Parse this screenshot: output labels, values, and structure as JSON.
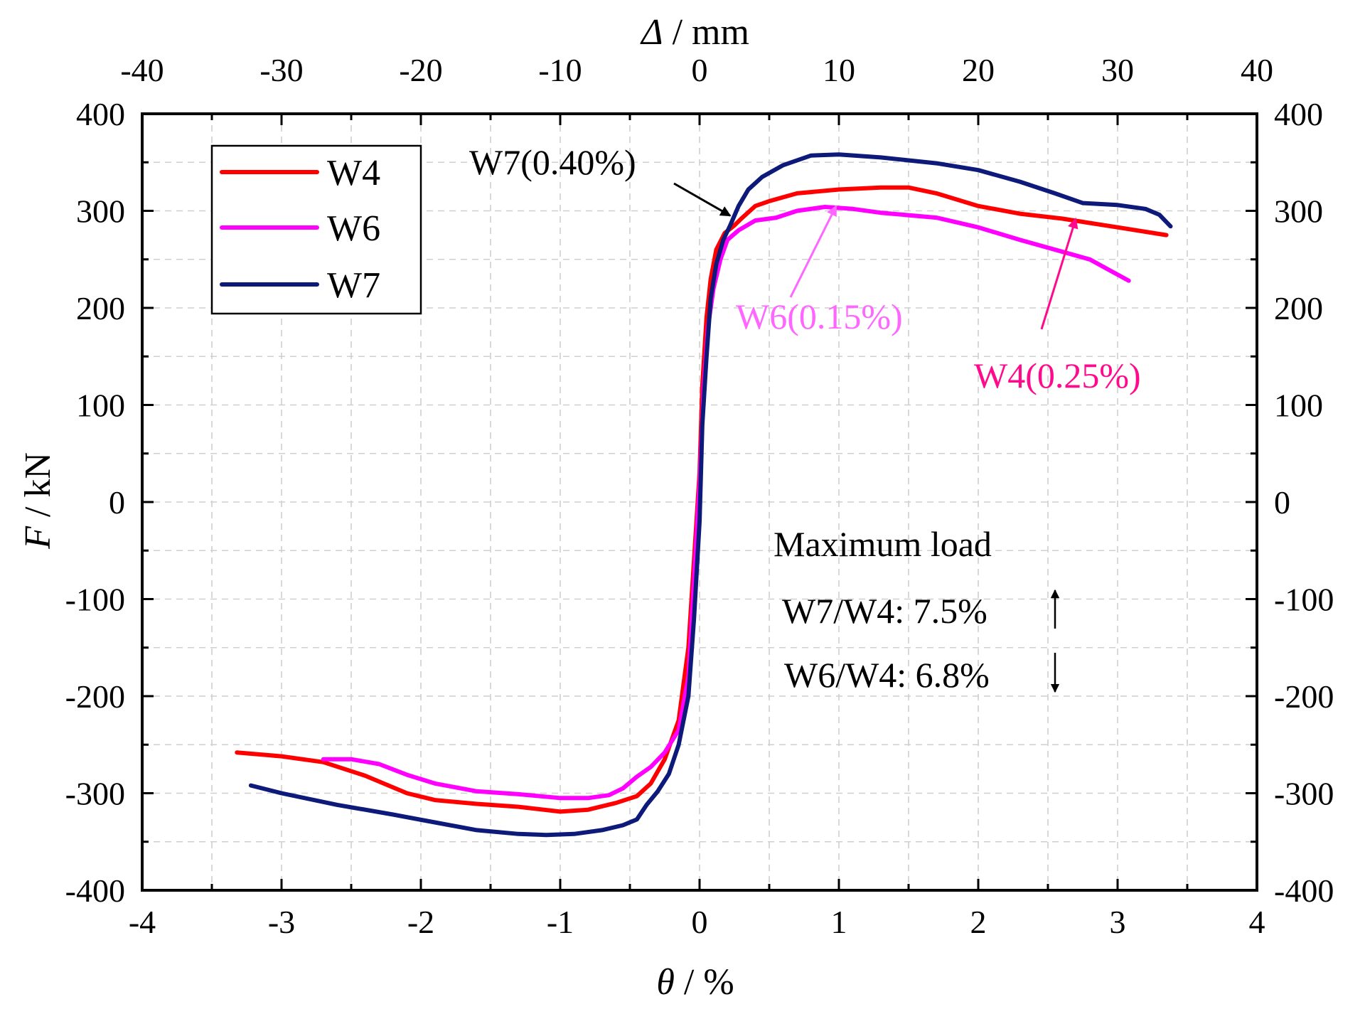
{
  "chart_data": {
    "type": "line",
    "x_label_symbol": "θ",
    "x_label_unit": " / %",
    "x2_label_symbol": "Δ",
    "x2_label_unit": " / mm",
    "y_label_symbol": "F",
    "y_label_unit": " / kN",
    "xlim": [
      -4,
      4
    ],
    "x2lim": [
      -40,
      40
    ],
    "ylim": [
      -400,
      400
    ],
    "x_ticks": [
      "-4",
      "-3",
      "-2",
      "-1",
      "0",
      "1",
      "2",
      "3",
      "4"
    ],
    "x2_ticks": [
      "-40",
      "-30",
      "-20",
      "-10",
      "0",
      "10",
      "20",
      "30",
      "40"
    ],
    "y_ticks": [
      "-400",
      "-300",
      "-200",
      "-100",
      "0",
      "100",
      "200",
      "300",
      "400"
    ],
    "grid": true,
    "legend_position": "top-left",
    "series": [
      {
        "name": "W4",
        "color": "#ff0000",
        "x": [
          -3.32,
          -3.0,
          -2.7,
          -2.4,
          -2.1,
          -1.9,
          -1.6,
          -1.3,
          -1.0,
          -0.8,
          -0.6,
          -0.45,
          -0.35,
          -0.25,
          -0.15,
          -0.08,
          -0.04,
          0.0,
          0.02,
          0.05,
          0.08,
          0.12,
          0.18,
          0.25,
          0.3,
          0.4,
          0.5,
          0.7,
          1.0,
          1.3,
          1.5,
          1.7,
          2.0,
          2.3,
          2.6,
          3.0,
          3.35
        ],
        "y": [
          -258,
          -262,
          -268,
          -282,
          -300,
          -307,
          -311,
          -314,
          -319,
          -317,
          -310,
          -303,
          -290,
          -265,
          -225,
          -150,
          -60,
          30,
          120,
          190,
          230,
          260,
          277,
          285,
          292,
          305,
          310,
          318,
          322,
          324,
          324,
          318,
          305,
          297,
          292,
          283,
          275
        ]
      },
      {
        "name": "W6",
        "color": "#ff00ff",
        "x": [
          -2.7,
          -2.5,
          -2.3,
          -2.1,
          -1.9,
          -1.6,
          -1.3,
          -1.0,
          -0.8,
          -0.65,
          -0.55,
          -0.45,
          -0.35,
          -0.25,
          -0.15,
          -0.08,
          -0.04,
          0.0,
          0.03,
          0.06,
          0.1,
          0.15,
          0.2,
          0.28,
          0.4,
          0.55,
          0.7,
          0.9,
          1.1,
          1.3,
          1.7,
          2.0,
          2.3,
          2.6,
          2.8,
          3.08
        ],
        "y": [
          -265,
          -265,
          -270,
          -281,
          -290,
          -298,
          -301,
          -305,
          -305,
          -302,
          -295,
          -283,
          -273,
          -258,
          -235,
          -180,
          -80,
          20,
          120,
          180,
          220,
          250,
          270,
          280,
          290,
          293,
          300,
          304,
          302,
          298,
          293,
          283,
          270,
          258,
          250,
          228
        ]
      },
      {
        "name": "W7",
        "color": "#0d1a7a",
        "x": [
          -3.22,
          -3.0,
          -2.6,
          -2.2,
          -1.9,
          -1.6,
          -1.3,
          -1.1,
          -0.9,
          -0.7,
          -0.55,
          -0.45,
          -0.38,
          -0.3,
          -0.22,
          -0.15,
          -0.08,
          -0.04,
          0.0,
          0.02,
          0.05,
          0.08,
          0.12,
          0.17,
          0.22,
          0.28,
          0.35,
          0.45,
          0.6,
          0.8,
          1.0,
          1.3,
          1.7,
          2.0,
          2.3,
          2.55,
          2.75,
          3.0,
          3.2,
          3.3,
          3.38
        ],
        "y": [
          -292,
          -300,
          -312,
          -322,
          -330,
          -338,
          -342,
          -343,
          -342,
          -338,
          -333,
          -327,
          -312,
          -298,
          -280,
          -250,
          -200,
          -120,
          -20,
          80,
          150,
          210,
          245,
          270,
          285,
          305,
          322,
          335,
          347,
          357,
          358,
          355,
          349,
          342,
          330,
          318,
          308,
          306,
          302,
          296,
          284
        ]
      }
    ],
    "annotations": {
      "w7_label": "W7(0.40%)",
      "w6_label": "W6(0.15%)",
      "w4_label": "W4(0.25%)",
      "w7_color": "#000000",
      "w6_color": "#ff66ff",
      "w4_color": "#ff0a8c",
      "w7_point": [
        0.22,
        295
      ],
      "w6_point": [
        0.98,
        305
      ],
      "w4_point": [
        2.7,
        292
      ],
      "max_load_title": "Maximum load",
      "ratio_w7_w4": "W7/W4: 7.5%",
      "ratio_w6_w4": "W6/W4: 6.8%"
    }
  }
}
